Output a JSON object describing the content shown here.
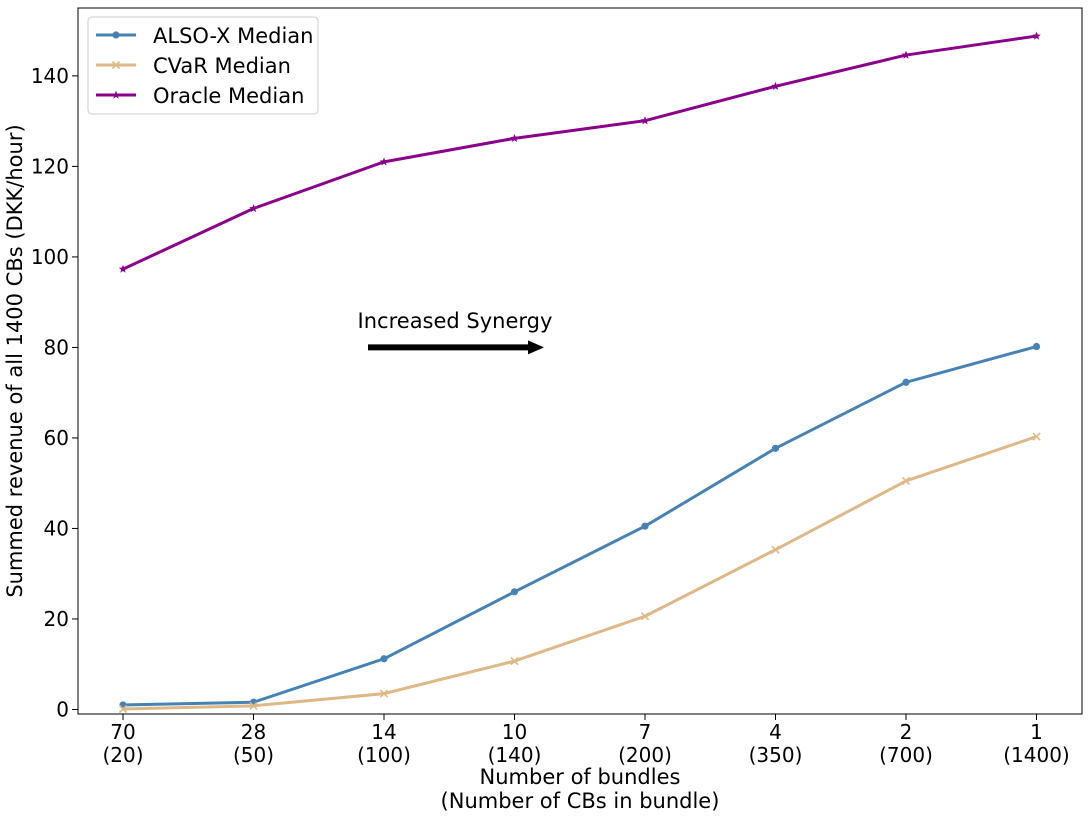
{
  "chart_data": {
    "type": "line",
    "title": "",
    "xlabel": "Number of bundles",
    "xlabel_line2": "(Number of CBs in bundle)",
    "ylabel": "Summed revenue of all 1400 CBs (DKK/hour)",
    "categories": [
      "70",
      "28",
      "14",
      "10",
      "7",
      "4",
      "2",
      "1"
    ],
    "category_sublabels": [
      "(20)",
      "(50)",
      "(100)",
      "(140)",
      "(200)",
      "(350)",
      "(700)",
      "(1400)"
    ],
    "ylim": [
      -1,
      155
    ],
    "yticks": [
      0,
      20,
      40,
      60,
      80,
      100,
      120,
      140
    ],
    "grid": false,
    "legend_position": "top-left",
    "series": [
      {
        "name": "ALSO-X Median",
        "color": "#4682b4",
        "marker": "circle",
        "values": [
          1.0,
          1.6,
          11.2,
          26.0,
          40.5,
          57.7,
          72.3,
          80.2
        ]
      },
      {
        "name": "CVaR Median",
        "color": "#deb887",
        "marker": "x",
        "values": [
          0.1,
          0.8,
          3.5,
          10.7,
          20.6,
          35.3,
          50.5,
          60.3
        ]
      },
      {
        "name": "Oracle Median",
        "color": "#8b008b",
        "marker": "star",
        "values": [
          97.3,
          110.7,
          121.0,
          126.2,
          130.1,
          137.7,
          144.6,
          148.8
        ]
      }
    ],
    "annotation": {
      "text": "Increased Synergy",
      "arrow": "right",
      "y_value": 80
    }
  }
}
